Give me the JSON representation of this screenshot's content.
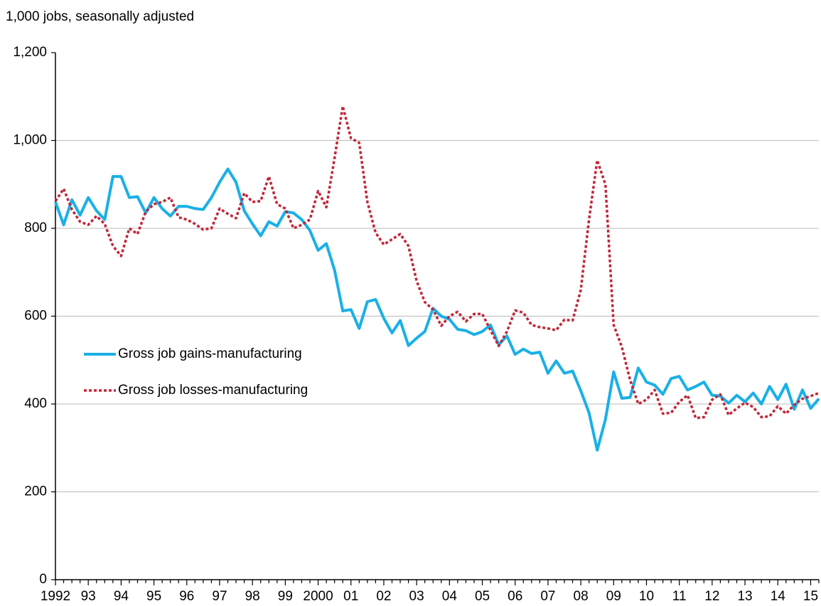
{
  "chart_data": {
    "type": "line",
    "y_axis_label": "1,000 jobs, seasonally adjusted",
    "categories": [
      "1992",
      null,
      null,
      null,
      "93",
      null,
      null,
      null,
      "94",
      null,
      null,
      null,
      "95",
      null,
      null,
      null,
      "96",
      null,
      null,
      null,
      "97",
      null,
      null,
      null,
      "98",
      null,
      null,
      null,
      "99",
      null,
      null,
      null,
      "2000",
      null,
      null,
      null,
      "01",
      null,
      null,
      null,
      "02",
      null,
      null,
      null,
      "03",
      null,
      null,
      null,
      "04",
      null,
      null,
      null,
      "05",
      null,
      null,
      null,
      "06",
      null,
      null,
      null,
      "07",
      null,
      null,
      null,
      "08",
      null,
      null,
      null,
      "09",
      null,
      null,
      null,
      "10",
      null,
      null,
      null,
      "11",
      null,
      null,
      null,
      "12",
      null,
      null,
      null,
      "13",
      null,
      null,
      null,
      "14",
      null,
      null,
      null,
      "15",
      null
    ],
    "series": [
      {
        "name": "Gross job gains-manufacturing",
        "color": "#1ab0e6",
        "style": "solid",
        "values": [
          860,
          808,
          865,
          830,
          870,
          840,
          820,
          918,
          918,
          870,
          872,
          835,
          870,
          845,
          828,
          850,
          850,
          845,
          843,
          870,
          905,
          935,
          905,
          840,
          810,
          783,
          815,
          805,
          838,
          835,
          820,
          795,
          750,
          765,
          705,
          612,
          615,
          572,
          633,
          638,
          595,
          562,
          590,
          533,
          550,
          565,
          618,
          600,
          593,
          570,
          567,
          558,
          565,
          580,
          535,
          555,
          513,
          525,
          515,
          518,
          470,
          498,
          470,
          475,
          430,
          380,
          295,
          365,
          473,
          413,
          415,
          482,
          450,
          443,
          422,
          458,
          463,
          432,
          440,
          450,
          420,
          418,
          402,
          420,
          405,
          425,
          400,
          440,
          410,
          445,
          388,
          432,
          390,
          412
        ]
      },
      {
        "name": "Gross job losses-manufacturing",
        "color": "#c0283a",
        "style": "dotted",
        "values": [
          862,
          890,
          843,
          815,
          808,
          828,
          810,
          760,
          737,
          800,
          787,
          838,
          855,
          860,
          870,
          825,
          820,
          810,
          797,
          800,
          845,
          833,
          823,
          880,
          860,
          862,
          918,
          855,
          845,
          800,
          808,
          820,
          885,
          848,
          960,
          1078,
          1005,
          995,
          860,
          790,
          763,
          775,
          787,
          760,
          680,
          632,
          615,
          578,
          600,
          610,
          588,
          605,
          605,
          568,
          532,
          565,
          613,
          608,
          580,
          575,
          572,
          568,
          592,
          590,
          660,
          820,
          955,
          900,
          580,
          530,
          455,
          400,
          410,
          432,
          378,
          380,
          405,
          420,
          368,
          370,
          410,
          422,
          375,
          390,
          403,
          393,
          370,
          372,
          395,
          378,
          398,
          412,
          418,
          425
        ]
      }
    ],
    "ylim": [
      0,
      1200
    ],
    "yticks": [
      0,
      200,
      400,
      600,
      800,
      {
        "value": 1000,
        "label": "1,000"
      },
      {
        "value": 1200,
        "label": "1,200"
      }
    ],
    "grid": true
  }
}
